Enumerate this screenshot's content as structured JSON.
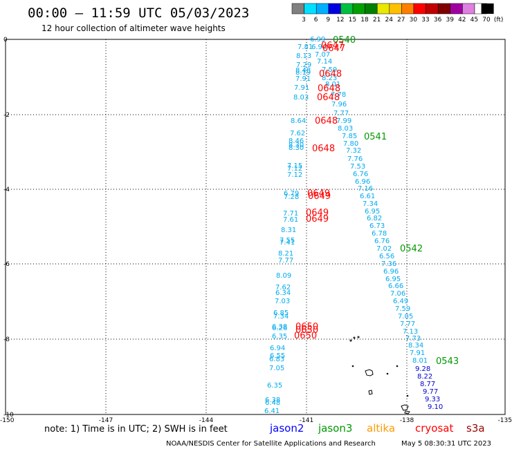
{
  "title": "00:00 – 11:59 UTC 05/03/2023",
  "subtitle": "12 hour collection of altimeter wave heights",
  "color_scale": {
    "labels": [
      "3",
      "6",
      "9",
      "12",
      "15",
      "18",
      "21",
      "24",
      "27",
      "30",
      "33",
      "36",
      "39",
      "42",
      "45",
      "70",
      "(ft)"
    ],
    "colors": [
      "#808080",
      "#00e0ff",
      "#00b0ff",
      "#0000e0",
      "#00c040",
      "#00a000",
      "#008000",
      "#e8e800",
      "#ffc000",
      "#ff8000",
      "#ff0000",
      "#c00000",
      "#800000",
      "#a000a0",
      "#e080e0",
      "#ffffff",
      "#000000"
    ]
  },
  "axes": {
    "lat_labels": [
      "0",
      "-2",
      "-4",
      "-6",
      "-8",
      "-10"
    ],
    "lon_labels": [
      "-150",
      "-147",
      "-144",
      "-141",
      "-138",
      "-135"
    ]
  },
  "tracks": [
    {
      "satellite": "jason3",
      "time": "0540",
      "color": "#009900"
    },
    {
      "satellite": "jason3",
      "time": "0541",
      "color": "#009900"
    },
    {
      "satellite": "jason3",
      "time": "0542",
      "color": "#009900"
    },
    {
      "satellite": "jason3",
      "time": "0543",
      "color": "#009900"
    },
    {
      "satellite": "cryosat",
      "time": "0647",
      "color": "#ff0000"
    },
    {
      "satellite": "cryosat",
      "time": "0647",
      "color": "#ff0000"
    },
    {
      "satellite": "cryosat",
      "time": "0648",
      "color": "#ff0000"
    },
    {
      "satellite": "cryosat",
      "time": "0648",
      "color": "#ff0000"
    },
    {
      "satellite": "cryosat",
      "time": "0648",
      "color": "#ff0000"
    },
    {
      "satellite": "cryosat",
      "time": "0648",
      "color": "#ff0000"
    },
    {
      "satellite": "cryosat",
      "time": "0648",
      "color": "#ff0000"
    },
    {
      "satellite": "cryosat",
      "time": "0649",
      "color": "#ff0000"
    },
    {
      "satellite": "cryosat",
      "time": "0649",
      "color": "#ff0000"
    },
    {
      "satellite": "cryosat",
      "time": "0649",
      "color": "#ff0000"
    },
    {
      "satellite": "cryosat",
      "time": "0649",
      "color": "#ff0000"
    },
    {
      "satellite": "cryosat",
      "time": "0650",
      "color": "#ff0000"
    },
    {
      "satellite": "cryosat",
      "time": "0650",
      "color": "#ff0000"
    },
    {
      "satellite": "cryosat",
      "time": "0650",
      "color": "#ff0000"
    }
  ],
  "wave_heights_ft": {
    "jason3_track": [
      "6.99",
      "7.14",
      "7.59",
      "8.23",
      "8.01",
      "7.78",
      "7.96",
      "7.77",
      "7.99",
      "8.03",
      "7.85",
      "7.80",
      "7.32",
      "7.76",
      "7.53",
      "6.76",
      "6.96",
      "7.16",
      "6.61",
      "7.34",
      "6.95",
      "6.82",
      "6.73",
      "6.78",
      "6.76",
      "7.02",
      "6.56",
      "7.36",
      "6.96",
      "6.95",
      "6.66",
      "7.06",
      "6.49",
      "7.59",
      "7.05",
      "7.77",
      "7.13",
      "7.73",
      "8.34",
      "7.91",
      "8.01",
      "9.28",
      "8.22",
      "8.77",
      "9.77",
      "9.33",
      "9.10"
    ],
    "cryosat_track": [
      "7.81",
      "6.94",
      "7.07",
      "8.13",
      "7.29",
      "8.48",
      "8.19",
      "7.91",
      "7.91",
      "8.03",
      "8.64",
      "7.62",
      "8.46",
      "8.30",
      "8.30",
      "7.15",
      "7.12",
      "7.12",
      "6.79",
      "7.28",
      "7.71",
      "7.61",
      "8.31",
      "7.55",
      "7.41",
      "8.21",
      "7.77",
      "8.09",
      "7.62",
      "6.34",
      "7.03",
      "6.85",
      "7.34",
      "6.38",
      "6.26",
      "6.35",
      "6.94",
      "6.55",
      "6.83",
      "7.05",
      "6.35",
      "6.38",
      "6.48",
      "6.41"
    ]
  },
  "legend_note": "note:  1) Time is in UTC;  2) SWH is in feet",
  "satellites": [
    {
      "name": "jason2",
      "color": "#0000ff"
    },
    {
      "name": "jason3",
      "color": "#009900"
    },
    {
      "name": "altika",
      "color": "#ff9900"
    },
    {
      "name": "cryosat",
      "color": "#ff0000"
    },
    {
      "name": "s3a",
      "color": "#990000"
    }
  ],
  "credit": "NOAA/NESDIS Center for Satellite Applications and Research",
  "timestamp": "May  5 08:30:31 UTC 2023"
}
